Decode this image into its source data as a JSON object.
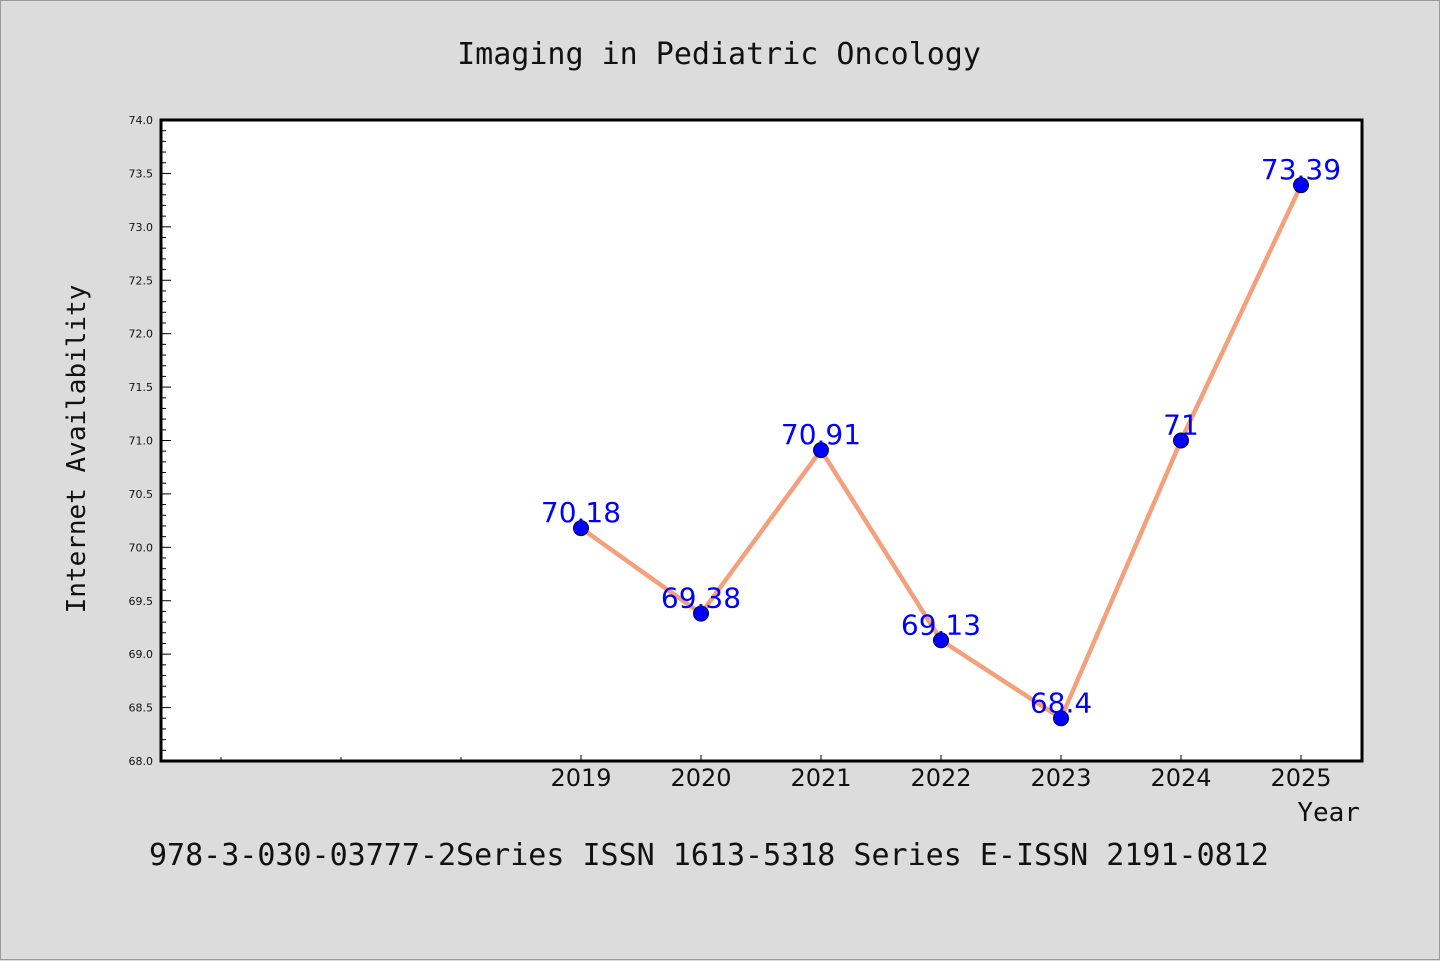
{
  "chart_data": {
    "type": "line",
    "title": "Imaging in Pediatric Oncology",
    "xlabel": "Year",
    "ylabel": "Internet Availability",
    "categories": [
      "2019",
      "2020",
      "2021",
      "2022",
      "2023",
      "2024",
      "2025"
    ],
    "series": [
      {
        "values": [
          70.18,
          69.38,
          70.91,
          69.13,
          68.4,
          71,
          73.39
        ]
      }
    ],
    "data_labels": [
      "70.18",
      "69.38",
      "70.91",
      "69.13",
      "68.4",
      "71",
      "73.39"
    ],
    "ylim": [
      68.0,
      74.0
    ],
    "yticks": [
      "68.0",
      "68.5",
      "69.0",
      "69.5",
      "70.0",
      "70.5",
      "71.0",
      "71.5",
      "72.0",
      "72.5",
      "73.0",
      "73.5",
      "74.0"
    ],
    "grid": false,
    "legend": "none",
    "line_color": "#f4a07c",
    "marker_color": "#0000ff",
    "label_color": "#0000ff",
    "background": "#dcdcdc",
    "plot_background": "#ffffff"
  },
  "footer": "978-3-030-03777-2Series ISSN 1613-5318 Series E-ISSN 2191-0812"
}
